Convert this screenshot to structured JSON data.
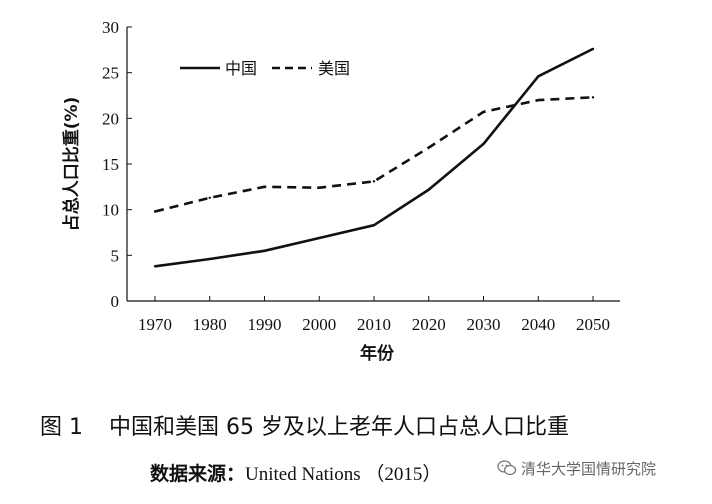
{
  "chart_data": {
    "type": "line",
    "x": [
      1970,
      1980,
      1990,
      2000,
      2010,
      2020,
      2030,
      2040,
      2050
    ],
    "series": [
      {
        "name": "中国",
        "values": [
          3.8,
          4.6,
          5.5,
          6.9,
          8.3,
          12.2,
          17.2,
          24.6,
          27.6
        ],
        "style": "solid"
      },
      {
        "name": "美国",
        "values": [
          9.8,
          11.3,
          12.5,
          12.4,
          13.1,
          16.8,
          20.7,
          22.0,
          22.3
        ],
        "style": "dashed"
      }
    ],
    "xlabel": "年份",
    "ylabel": "占总人口比重(%)",
    "ylim": [
      0,
      30
    ],
    "yticks": [
      0,
      5,
      10,
      15,
      20,
      25,
      30
    ],
    "xticks": [
      1970,
      1980,
      1990,
      2000,
      2010,
      2020,
      2030,
      2040,
      2050
    ],
    "grid": false,
    "legend_position": "top-left",
    "line_color": "#111111"
  },
  "caption": {
    "figure_number": "图 1",
    "title": "中国和美国 65 岁及以上老年人口占总人口比重"
  },
  "source": {
    "label": "数据来源：",
    "value": "United Nations （2015）"
  },
  "watermark": {
    "text": "清华大学国情研究院",
    "icon": "wechat-icon"
  }
}
